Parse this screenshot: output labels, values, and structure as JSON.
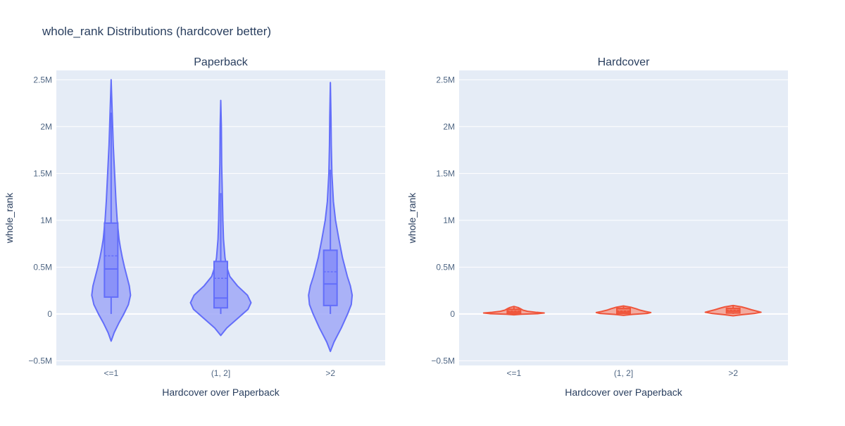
{
  "title": "whole_rank Distributions (hardcover better)",
  "colors": {
    "paper_bg": "#ffffff",
    "plot_bg": "#e5ecf6",
    "grid": "#ffffff",
    "text": "#2a3f5f",
    "tick_text": "#506784",
    "paperback_line": "#636efa",
    "paperback_fill": "#a0a8f7",
    "paperback_box": "#8a92f8",
    "hardcover_line": "#ef553b",
    "hardcover_fill": "#f4a090",
    "hardcover_box": "#f07a64"
  },
  "chart_data": [
    {
      "type": "violin",
      "subplot_title": "Paperback",
      "xlabel": "Hardcover over Paperback",
      "ylabel": "whole_rank",
      "ylim": [
        -550000,
        2600000
      ],
      "yticks": [
        -500000,
        0,
        500000,
        1000000,
        1500000,
        2000000,
        2500000
      ],
      "ytick_labels": [
        "−0.5M",
        "0",
        "0.5M",
        "1M",
        "1.5M",
        "2M",
        "2.5M"
      ],
      "grid": true,
      "categories": [
        "<=1",
        "(1, 2]",
        ">2"
      ],
      "series": [
        {
          "category": "<=1",
          "box": {
            "q1": 180000,
            "median": 480000,
            "mean": 620000,
            "q3": 970000,
            "whisker_low": 0,
            "whisker_high": 2150000
          },
          "kde_min": -290000,
          "kde_max": 2500000,
          "density": [
            [
              -290000,
              0.0
            ],
            [
              -200000,
              0.1
            ],
            [
              -100000,
              0.25
            ],
            [
              0,
              0.42
            ],
            [
              100000,
              0.57
            ],
            [
              200000,
              0.64
            ],
            [
              300000,
              0.6
            ],
            [
              400000,
              0.52
            ],
            [
              500000,
              0.44
            ],
            [
              600000,
              0.37
            ],
            [
              700000,
              0.31
            ],
            [
              800000,
              0.26
            ],
            [
              900000,
              0.23
            ],
            [
              1000000,
              0.2
            ],
            [
              1200000,
              0.16
            ],
            [
              1400000,
              0.13
            ],
            [
              1600000,
              0.1
            ],
            [
              1800000,
              0.07
            ],
            [
              2000000,
              0.05
            ],
            [
              2200000,
              0.03
            ],
            [
              2400000,
              0.01
            ],
            [
              2500000,
              0.0
            ]
          ]
        },
        {
          "category": "(1, 2]",
          "box": {
            "q1": 65000,
            "median": 170000,
            "mean": 380000,
            "q3": 560000,
            "whisker_low": 0,
            "whisker_high": 1290000
          },
          "kde_min": -230000,
          "kde_max": 2280000,
          "density": [
            [
              -230000,
              0.0
            ],
            [
              -150000,
              0.2
            ],
            [
              -50000,
              0.55
            ],
            [
              50000,
              0.9
            ],
            [
              120000,
              1.0
            ],
            [
              200000,
              0.88
            ],
            [
              300000,
              0.55
            ],
            [
              400000,
              0.3
            ],
            [
              500000,
              0.2
            ],
            [
              600000,
              0.14
            ],
            [
              800000,
              0.09
            ],
            [
              1000000,
              0.07
            ],
            [
              1300000,
              0.05
            ],
            [
              1600000,
              0.03
            ],
            [
              2000000,
              0.02
            ],
            [
              2280000,
              0.0
            ]
          ]
        },
        {
          "category": ">2",
          "box": {
            "q1": 90000,
            "median": 320000,
            "mean": 450000,
            "q3": 680000,
            "whisker_low": 0,
            "whisker_high": 1540000
          },
          "kde_min": -400000,
          "kde_max": 2470000,
          "density": [
            [
              -400000,
              0.0
            ],
            [
              -300000,
              0.12
            ],
            [
              -150000,
              0.36
            ],
            [
              0,
              0.57
            ],
            [
              100000,
              0.69
            ],
            [
              200000,
              0.72
            ],
            [
              300000,
              0.66
            ],
            [
              400000,
              0.56
            ],
            [
              600000,
              0.4
            ],
            [
              800000,
              0.28
            ],
            [
              1000000,
              0.17
            ],
            [
              1200000,
              0.1
            ],
            [
              1500000,
              0.05
            ],
            [
              1800000,
              0.03
            ],
            [
              2100000,
              0.02
            ],
            [
              2470000,
              0.0
            ]
          ]
        }
      ]
    },
    {
      "type": "violin",
      "subplot_title": "Hardcover",
      "xlabel": "Hardcover over Paperback",
      "ylabel": "whole_rank",
      "ylim": [
        -550000,
        2600000
      ],
      "yticks": [
        -500000,
        0,
        500000,
        1000000,
        1500000,
        2000000,
        2500000
      ],
      "ytick_labels": [
        "−0.5M",
        "0",
        "0.5M",
        "1M",
        "1.5M",
        "2M",
        "2.5M"
      ],
      "grid": true,
      "categories": [
        "<=1",
        "(1, 2]",
        ">2"
      ],
      "series": [
        {
          "category": "<=1",
          "box": {
            "q1": 5000,
            "median": 20000,
            "mean": 30000,
            "q3": 50000,
            "whisker_low": 0,
            "whisker_high": 80000
          },
          "kde_min": -10000,
          "kde_max": 80000,
          "density": [
            [
              -10000,
              0.0
            ],
            [
              -3000,
              0.25
            ],
            [
              3000,
              0.8
            ],
            [
              10000,
              1.0
            ],
            [
              18000,
              0.72
            ],
            [
              28000,
              0.45
            ],
            [
              40000,
              0.3
            ],
            [
              55000,
              0.22
            ],
            [
              68000,
              0.14
            ],
            [
              80000,
              0.0
            ]
          ]
        },
        {
          "category": "(1, 2]",
          "box": {
            "q1": 5000,
            "median": 20000,
            "mean": 30000,
            "q3": 60000,
            "whisker_low": 0,
            "whisker_high": 85000
          },
          "kde_min": -15000,
          "kde_max": 85000,
          "density": [
            [
              -15000,
              0.0
            ],
            [
              -5000,
              0.3
            ],
            [
              5000,
              0.78
            ],
            [
              15000,
              0.9
            ],
            [
              25000,
              0.74
            ],
            [
              40000,
              0.55
            ],
            [
              55000,
              0.42
            ],
            [
              70000,
              0.26
            ],
            [
              85000,
              0.0
            ]
          ]
        },
        {
          "category": ">2",
          "box": {
            "q1": 10000,
            "median": 30000,
            "mean": 40000,
            "q3": 60000,
            "whisker_low": 0,
            "whisker_high": 85000
          },
          "kde_min": -20000,
          "kde_max": 90000,
          "density": [
            [
              -20000,
              0.0
            ],
            [
              -8000,
              0.3
            ],
            [
              5000,
              0.7
            ],
            [
              18000,
              0.92
            ],
            [
              30000,
              0.78
            ],
            [
              45000,
              0.6
            ],
            [
              60000,
              0.45
            ],
            [
              75000,
              0.28
            ],
            [
              90000,
              0.0
            ]
          ]
        }
      ]
    }
  ]
}
